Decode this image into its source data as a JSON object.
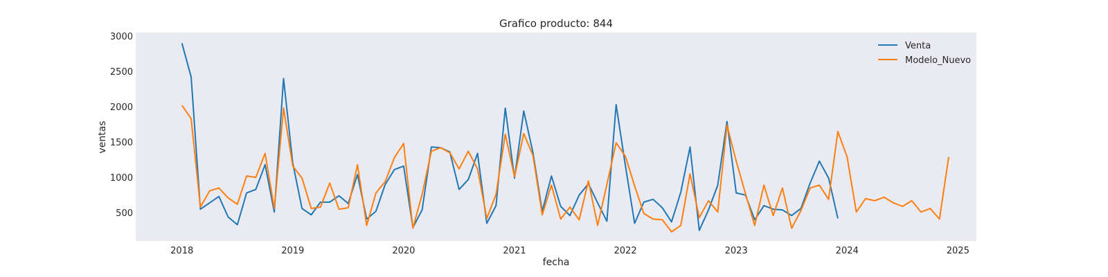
{
  "chart_data": {
    "type": "line",
    "title": "Grafico producto: 844",
    "xlabel": "fecha",
    "ylabel": "ventas",
    "x_start": "2018-01",
    "x_interval": "month",
    "xlim": [
      "2017-08",
      "2025-03"
    ],
    "ylim": [
      100,
      3050
    ],
    "x_ticks": [
      "2018",
      "2019",
      "2020",
      "2021",
      "2022",
      "2023",
      "2024",
      "2025"
    ],
    "y_ticks": [
      500,
      1000,
      1500,
      2000,
      2500,
      3000
    ],
    "grid": false,
    "background": "#EAEAF2",
    "legend_position": "top-right",
    "series": [
      {
        "name": "Venta",
        "color": "#1F77B4",
        "values": [
          2900,
          2420,
          550,
          640,
          730,
          440,
          330,
          780,
          830,
          1180,
          510,
          2400,
          1200,
          560,
          470,
          650,
          650,
          740,
          630,
          1040,
          410,
          520,
          900,
          1110,
          1160,
          290,
          540,
          1430,
          1420,
          1360,
          830,
          970,
          1340,
          350,
          600,
          1980,
          990,
          1940,
          1350,
          520,
          1020,
          590,
          460,
          750,
          910,
          640,
          380,
          2030,
          1170,
          350,
          650,
          690,
          570,
          370,
          790,
          1430,
          250,
          540,
          890,
          1790,
          780,
          750,
          400,
          600,
          550,
          540,
          460,
          560,
          920,
          1230,
          990,
          420
        ]
      },
      {
        "name": "Modelo_Nuevo",
        "color": "#FF7F0E",
        "values": [
          2020,
          1830,
          580,
          810,
          850,
          710,
          620,
          1020,
          1000,
          1340,
          560,
          1980,
          1160,
          990,
          560,
          580,
          920,
          550,
          570,
          1180,
          320,
          780,
          940,
          1280,
          1480,
          280,
          760,
          1370,
          1420,
          1350,
          1120,
          1370,
          1120,
          420,
          760,
          1610,
          1010,
          1620,
          1310,
          470,
          890,
          410,
          580,
          400,
          950,
          320,
          900,
          1490,
          1300,
          880,
          490,
          410,
          400,
          230,
          320,
          1050,
          430,
          670,
          510,
          1740,
          1230,
          770,
          320,
          890,
          460,
          850,
          280,
          530,
          850,
          890,
          690,
          1650,
          1290,
          510,
          700,
          670,
          720,
          640,
          590,
          670,
          510,
          560,
          410,
          1290
        ]
      }
    ]
  }
}
